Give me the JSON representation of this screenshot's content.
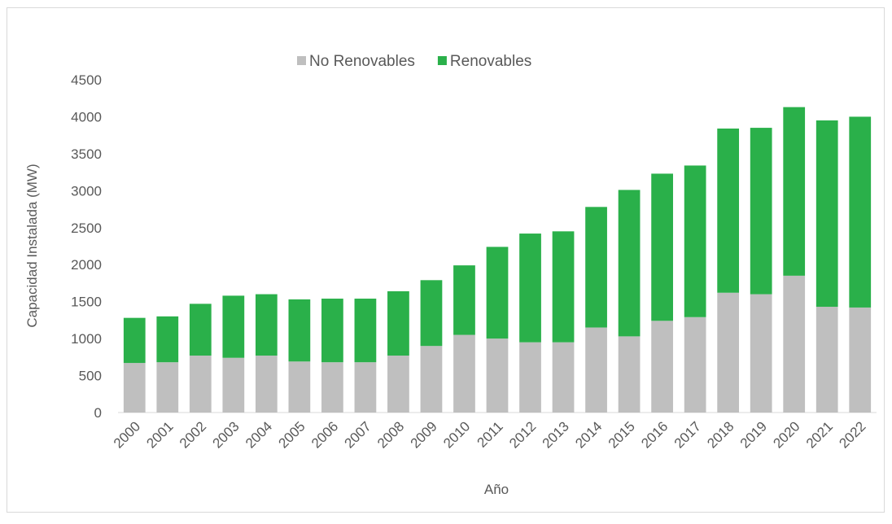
{
  "chart_data": {
    "type": "stacked_bar",
    "x_label": "Año",
    "y_label": "Capacidad Instalada (MW)",
    "categories": [
      "2000",
      "2001",
      "2002",
      "2003",
      "2004",
      "2005",
      "2006",
      "2007",
      "2008",
      "2009",
      "2010",
      "2011",
      "2012",
      "2013",
      "2014",
      "2015",
      "2016",
      "2017",
      "2018",
      "2019",
      "2020",
      "2021",
      "2022"
    ],
    "series": [
      {
        "name": "No Renovables",
        "color": "#bfbfbf",
        "values": [
          670,
          680,
          770,
          740,
          770,
          690,
          680,
          680,
          770,
          900,
          1050,
          1000,
          950,
          950,
          1150,
          1030,
          1240,
          1290,
          1620,
          1600,
          1850,
          1430,
          1420
        ]
      },
      {
        "name": "Renovables",
        "color": "#2ab04a",
        "values": [
          610,
          620,
          700,
          840,
          830,
          840,
          860,
          860,
          870,
          890,
          940,
          1240,
          1470,
          1500,
          1630,
          1980,
          1990,
          2050,
          2220,
          2250,
          2280,
          2520,
          2580
        ]
      }
    ],
    "ylim": [
      0,
      4500
    ],
    "yticks": [
      0,
      500,
      1000,
      1500,
      2000,
      2500,
      3000,
      3500,
      4000,
      4500
    ],
    "legend": "top"
  }
}
